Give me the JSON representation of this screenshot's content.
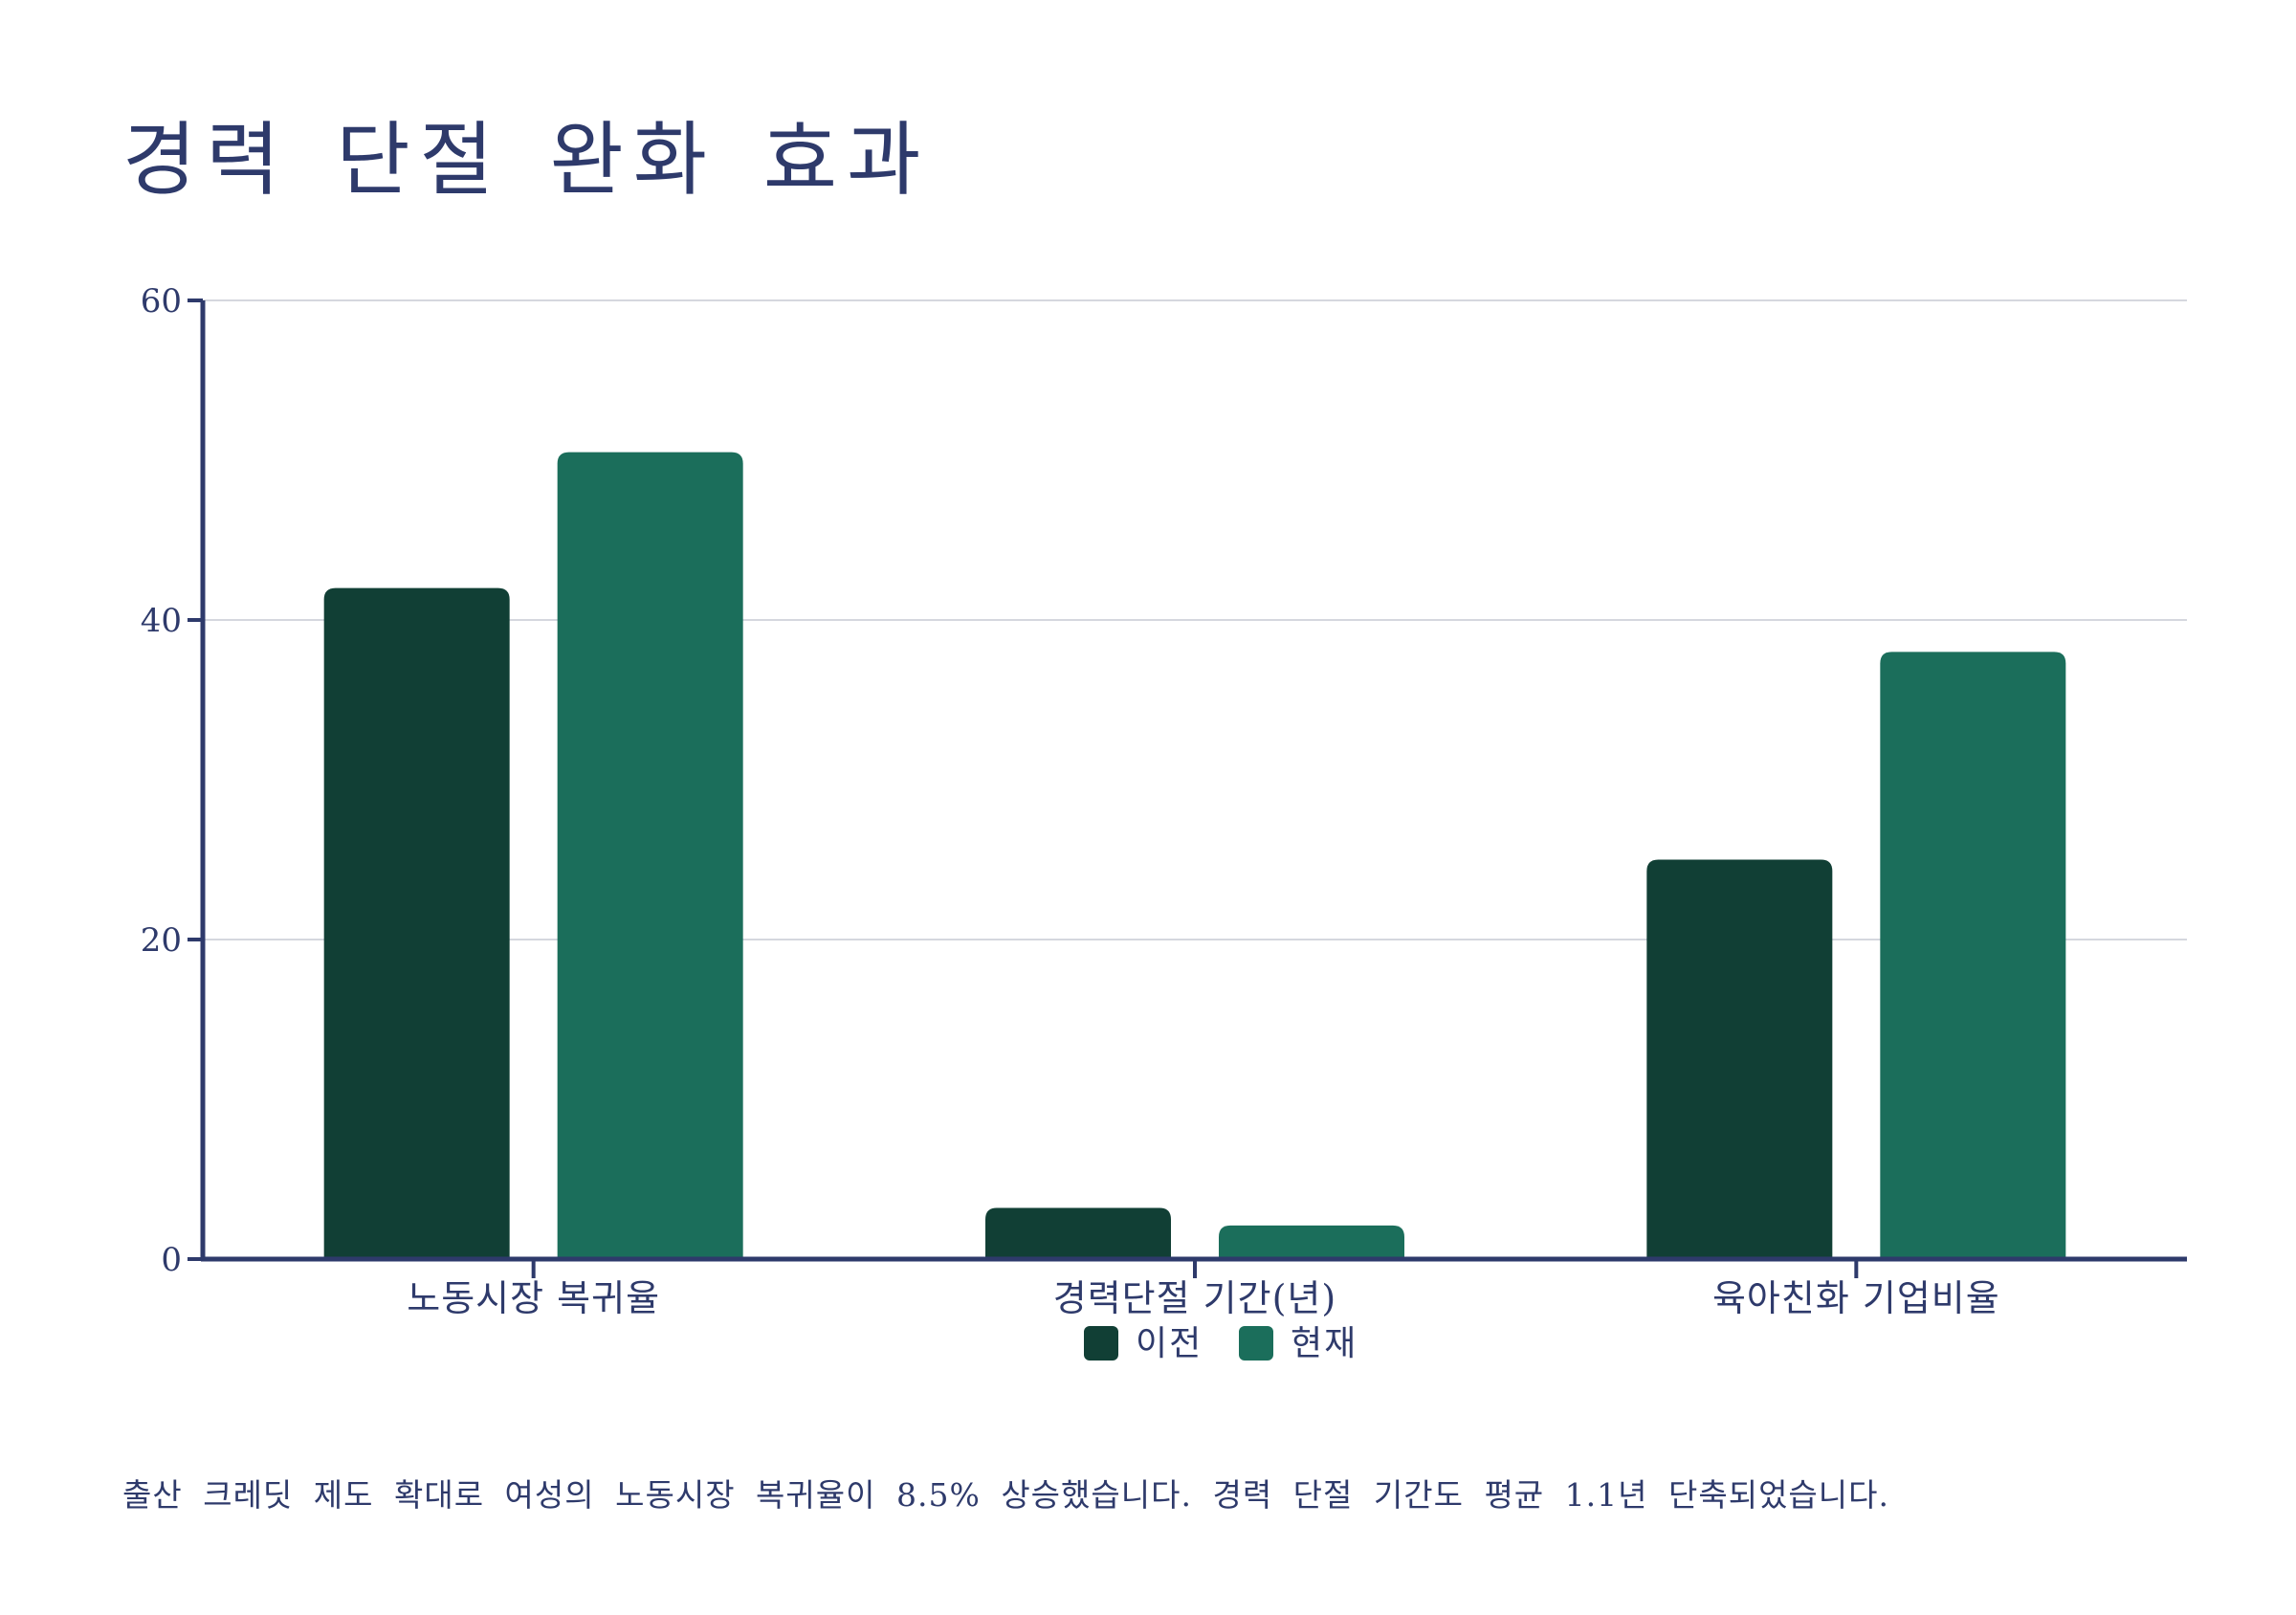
{
  "title": "경력 단절 완화 효과",
  "note": "출산 크레딧 제도 확대로 여성의 노동시장 복귀율이 8.5% 상승했습니다. 경력 단절 기간도 평균 1.1년 단축되었습니다.",
  "colors": {
    "text": "#2e3a6b",
    "axis": "#2e3a6b",
    "grid": "#d5d7de",
    "before": "#113f35",
    "after": "#1b6e5b"
  },
  "chart_data": {
    "type": "bar",
    "categories": [
      "노동시장 복귀율",
      "경력단절 기간(년)",
      "육아친화 기업비율"
    ],
    "series": [
      {
        "name": "이전",
        "values": [
          42.0,
          3.2,
          25.0
        ]
      },
      {
        "name": "현재",
        "values": [
          50.5,
          2.1,
          38.0
        ]
      }
    ],
    "yticks": [
      0,
      20,
      40,
      60
    ],
    "ylim": [
      0,
      60
    ],
    "grid": true,
    "legend_position": "bottom-center"
  }
}
